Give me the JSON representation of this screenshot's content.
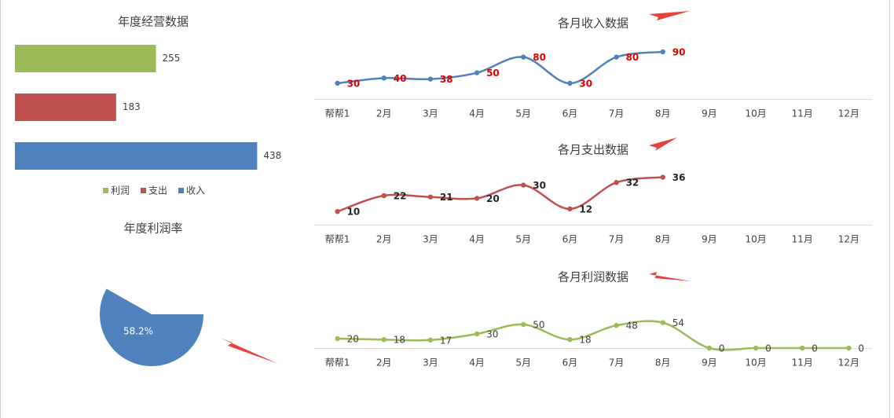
{
  "chart_data": [
    {
      "type": "hbar",
      "title": "年度经营数据",
      "series": [
        {
          "name": "利润",
          "color": "#9bbb59",
          "values": [
            255
          ]
        },
        {
          "name": "支出",
          "color": "#c0504d",
          "values": [
            183
          ]
        },
        {
          "name": "收入",
          "color": "#4f81bd",
          "values": [
            438
          ]
        }
      ],
      "xlim": [
        0,
        500
      ],
      "legend": "bottom"
    },
    {
      "type": "pie",
      "title": "年度利润率",
      "values": [
        58.2
      ],
      "value_labels": [
        "58.2%"
      ],
      "color": "#4f81bd"
    },
    {
      "type": "line",
      "title": "各月收入数据",
      "categories": [
        "帮帮1",
        "2月",
        "3月",
        "4月",
        "5月",
        "6月",
        "7月",
        "8月",
        "9月",
        "10月",
        "11月",
        "12月"
      ],
      "series": [
        {
          "color": "#4f81bd",
          "label_color": "#e00000",
          "label_bold": true,
          "values": [
            30,
            40,
            38,
            50,
            80,
            30,
            80,
            90,
            null,
            null,
            null,
            null
          ]
        }
      ],
      "ylim": [
        0,
        120
      ]
    },
    {
      "type": "line",
      "title": "各月支出数据",
      "categories": [
        "帮帮1",
        "2月",
        "3月",
        "4月",
        "5月",
        "6月",
        "7月",
        "8月",
        "9月",
        "10月",
        "11月",
        "12月"
      ],
      "series": [
        {
          "color": "#c0504d",
          "label_color": "#262626",
          "label_bold": true,
          "values": [
            10,
            22,
            21,
            20,
            30,
            12,
            32,
            36,
            null,
            null,
            null,
            null
          ]
        }
      ],
      "ylim": [
        0,
        50
      ]
    },
    {
      "type": "line",
      "title": "各月利润数据",
      "categories": [
        "帮帮1",
        "2月",
        "3月",
        "4月",
        "5月",
        "6月",
        "7月",
        "8月",
        "9月",
        "10月",
        "11月",
        "12月"
      ],
      "series": [
        {
          "color": "#9bbb59",
          "label_color": "#404040",
          "label_bold": false,
          "values": [
            20,
            18,
            17,
            30,
            50,
            18,
            48,
            54,
            0,
            0,
            0,
            0
          ]
        }
      ],
      "ylim": [
        0,
        110
      ]
    }
  ]
}
